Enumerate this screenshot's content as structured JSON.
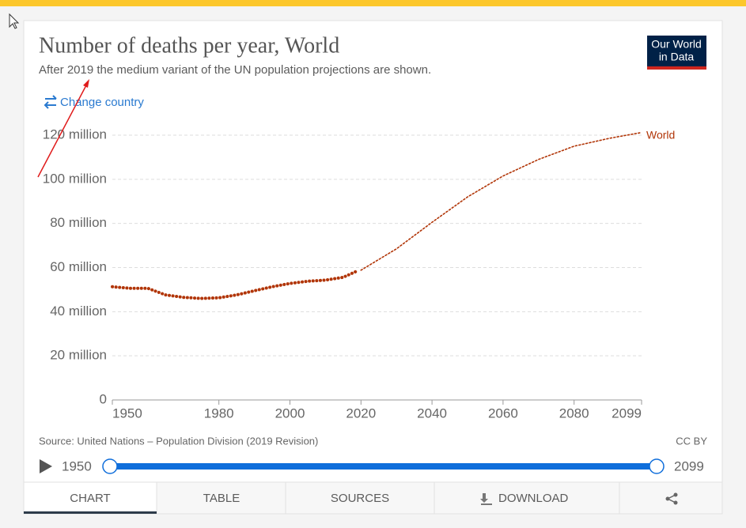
{
  "chart_data": {
    "type": "line",
    "title": "Number of deaths per year, World",
    "subtitle": "After 2019 the medium variant of the UN population projections are shown.",
    "x": [
      1950,
      1955,
      1960,
      1965,
      1970,
      1975,
      1980,
      1985,
      1990,
      1995,
      2000,
      2005,
      2010,
      2015,
      2019,
      2020,
      2030,
      2040,
      2050,
      2060,
      2070,
      2080,
      2090,
      2099
    ],
    "series": [
      {
        "name": "World",
        "color": "#b13507",
        "values": [
          51.3,
          50.6,
          50.6,
          47.6,
          46.5,
          46.0,
          46.3,
          47.6,
          49.5,
          51.3,
          52.8,
          53.8,
          54.3,
          55.6,
          58.5,
          58.8,
          68.5,
          80.5,
          92.0,
          101.5,
          109.0,
          115.0,
          118.6,
          121.2
        ]
      }
    ],
    "projected_from": 2020,
    "xlim": [
      1950,
      2099
    ],
    "xticks": [
      1950,
      1980,
      2000,
      2020,
      2040,
      2060,
      2080,
      2099
    ],
    "ylim": [
      0,
      120
    ],
    "yticks": [
      0,
      {
        "value": 20,
        "label": "20 million"
      },
      {
        "value": 40,
        "label": "40 million"
      },
      {
        "value": 60,
        "label": "60 million"
      },
      {
        "value": 80,
        "label": "80 million"
      },
      {
        "value": 100,
        "label": "100 million"
      },
      {
        "value": 120,
        "label": "120 million"
      }
    ],
    "grid": true
  },
  "header": {
    "change_country": "Change country",
    "logo": [
      "Our World",
      "in Data"
    ]
  },
  "footer": {
    "source": "Source: United Nations – Population Division (2019 Revision)",
    "license": "CC BY"
  },
  "timeline": {
    "start": 1950,
    "end": 2099
  },
  "tabs": [
    "CHART",
    "TABLE",
    "SOURCES",
    "DOWNLOAD"
  ]
}
